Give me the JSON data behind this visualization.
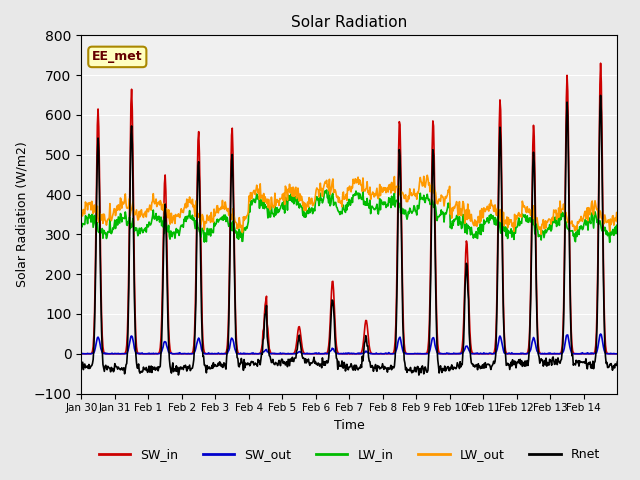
{
  "title": "Solar Radiation",
  "xlabel": "Time",
  "ylabel": "Solar Radiation (W/m2)",
  "annotation": "EE_met",
  "ylim": [
    -100,
    800
  ],
  "yticks": [
    -100,
    0,
    100,
    200,
    300,
    400,
    500,
    600,
    700,
    800
  ],
  "xtick_labels": [
    "Jan 30",
    "Jan 31",
    "Feb 1",
    "Feb 2",
    "Feb 3",
    "Feb 4",
    "Feb 5",
    "Feb 6",
    "Feb 7",
    "Feb 8",
    "Feb 9",
    "Feb 10",
    "Feb 11",
    "Feb 12",
    "Feb 13",
    "Feb 14"
  ],
  "bg_color": "#e8e8e8",
  "plot_bg": "#f0f0f0",
  "series": {
    "SW_in": {
      "color": "#cc0000",
      "lw": 1.2
    },
    "SW_out": {
      "color": "#0000cc",
      "lw": 1.2
    },
    "LW_in": {
      "color": "#00bb00",
      "lw": 1.2
    },
    "LW_out": {
      "color": "#ff9900",
      "lw": 1.2
    },
    "Rnet": {
      "color": "#000000",
      "lw": 1.2
    }
  },
  "legend_ncol": 5
}
